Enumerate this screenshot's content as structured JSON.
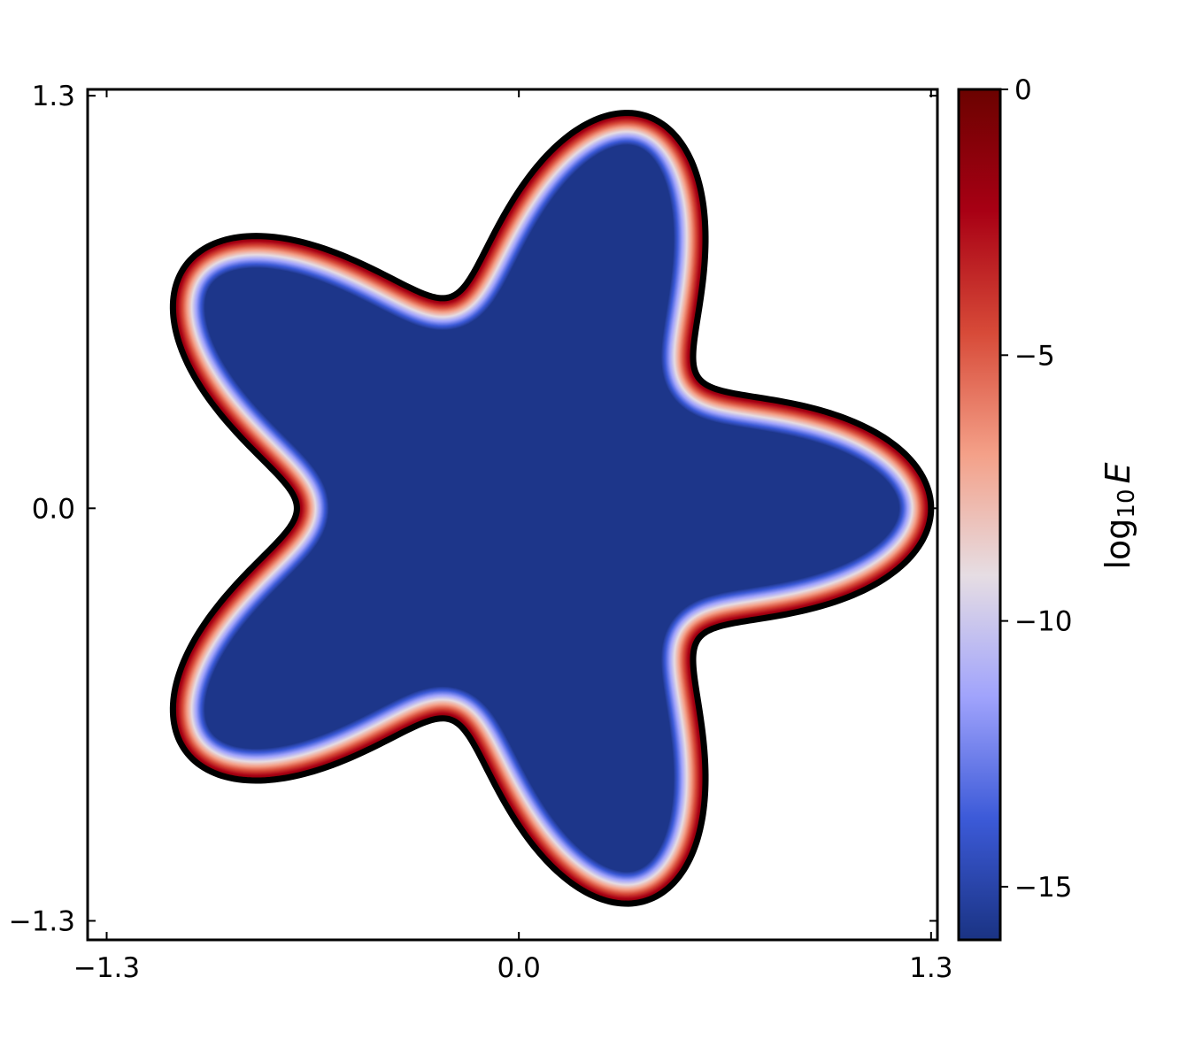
{
  "chart_data": {
    "type": "heatmap",
    "title": "",
    "xlabel": "",
    "ylabel": "",
    "xlim": [
      -1.36,
      1.32
    ],
    "ylim": [
      -1.36,
      1.32
    ],
    "xticks": [
      -1.3,
      0.0,
      1.3
    ],
    "yticks": [
      -1.3,
      0.0,
      1.3
    ],
    "xtick_labels": [
      "−1.3",
      "0.0",
      "1.3"
    ],
    "ytick_labels": [
      "−1.3",
      "0.0",
      "1.3"
    ],
    "grid": false,
    "domain": {
      "shape": "five-armed star",
      "boundary": "r(theta) = 1.0 + 0.3 cos(5 theta)",
      "outer_radius": 1.3,
      "inner_radius": 0.7
    },
    "field": {
      "name": "E",
      "interior_log10_value": -15.8,
      "boundary_log10_value": 0,
      "boundary_layer_width": 0.1,
      "boundary_outline_color": "#000000"
    },
    "colorbar": {
      "label_prefix": "log",
      "label_subscript": "10",
      "label_variable": "E",
      "range": [
        -16,
        0
      ],
      "ticks": [
        0,
        -5,
        -10,
        -15
      ],
      "tick_labels": [
        "0",
        "−5",
        "−10",
        "−15"
      ],
      "colormap": "coolwarm-like",
      "colors": [
        "#1a3383",
        "#3c5ad8",
        "#a0a3fc",
        "#e6dde3",
        "#f4a088",
        "#d74a38",
        "#a80014",
        "#6b0200"
      ]
    }
  }
}
